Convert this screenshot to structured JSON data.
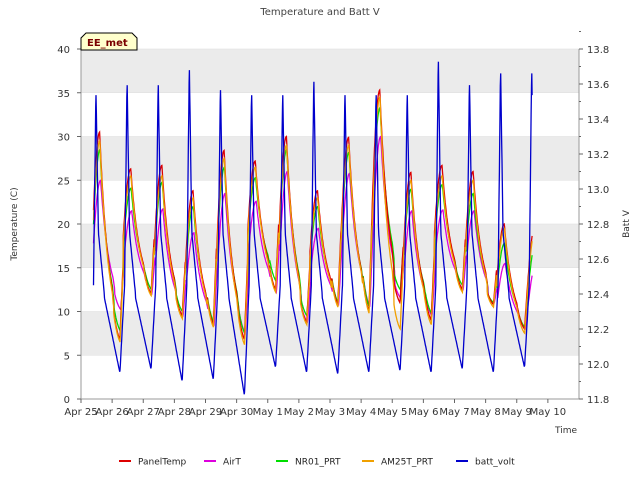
{
  "chart_data": {
    "type": "line",
    "title": "Temperature and Batt V",
    "xlabel": "Time",
    "ylabel": "Temperature (C)",
    "y2label": "Batt V",
    "ylim": [
      0,
      40
    ],
    "y2lim": [
      11.8,
      13.8
    ],
    "xlim": [
      0,
      16
    ],
    "x_ticks": [
      "Apr 25",
      "Apr 26",
      "Apr 27",
      "Apr 28",
      "Apr 29",
      "Apr 30",
      "May 1",
      "May 2",
      "May 3",
      "May 4",
      "May 5",
      "May 6",
      "May 7",
      "May 8",
      "May 9",
      "May 10"
    ],
    "y_ticks": [
      0,
      5,
      10,
      15,
      20,
      25,
      30,
      35,
      40
    ],
    "y2_ticks": [
      "11.8",
      "12.0",
      "12.2",
      "12.4",
      "12.6",
      "12.8",
      "13.0",
      "13.2",
      "13.4",
      "13.6",
      "13.8"
    ],
    "grid": true,
    "legend_position": "bottom",
    "station_label": "EE_met",
    "colors": {
      "band": "#ebebeb",
      "plot_bg": "#ffffff"
    },
    "daily": {
      "days": [
        0,
        1,
        2,
        3,
        4,
        5,
        6,
        7,
        8,
        9,
        10,
        11,
        12,
        13,
        14
      ],
      "PanelTemp_max": [
        30.5,
        26.3,
        26.7,
        23.8,
        28.4,
        27.2,
        30.0,
        23.8,
        29.9,
        35.3,
        25.9,
        26.7,
        26.0,
        20.0,
        20.0
      ],
      "PanelTemp_min": [
        6.8,
        12.0,
        9.5,
        8.5,
        6.8,
        12.5,
        8.7,
        10.8,
        10.0,
        11.0,
        9.0,
        12.5,
        10.8,
        8.0,
        7.8
      ],
      "AirT_max": [
        25.0,
        21.5,
        21.7,
        19.0,
        23.5,
        22.6,
        26.0,
        19.5,
        25.8,
        30.0,
        21.5,
        21.6,
        21.5,
        15.5,
        15.5
      ],
      "AirT_min": [
        10.2,
        12.0,
        9.5,
        8.5,
        7.5,
        12.2,
        8.8,
        10.8,
        10.5,
        11.5,
        9.5,
        12.5,
        11.0,
        8.0,
        7.8
      ],
      "NR01_PRT_max": [
        28.5,
        24.1,
        24.8,
        22.0,
        26.5,
        25.3,
        28.5,
        22.0,
        28.2,
        33.3,
        24.0,
        24.5,
        23.5,
        17.8,
        17.8
      ],
      "NR01_PRT_min": [
        7.8,
        12.5,
        10.0,
        8.8,
        7.5,
        13.5,
        9.5,
        11.0,
        10.5,
        12.5,
        9.8,
        13.0,
        11.0,
        8.2,
        7.5
      ],
      "AM25T_PRT_max": [
        29.5,
        25.5,
        25.5,
        23.0,
        27.5,
        26.5,
        29.0,
        23.0,
        29.0,
        34.5,
        25.0,
        25.5,
        25.0,
        19.5,
        19.5
      ],
      "AM25T_PRT_min": [
        6.5,
        11.8,
        9.2,
        8.2,
        6.2,
        12.2,
        8.5,
        10.5,
        9.8,
        8.0,
        8.5,
        12.2,
        10.5,
        7.5,
        7.5
      ],
      "batt_volt_peak": [
        13.57,
        13.63,
        13.63,
        13.72,
        13.6,
        13.57,
        13.57,
        13.65,
        13.57,
        13.57,
        13.57,
        13.77,
        13.63,
        13.7,
        13.7
      ],
      "batt_volt_min": [
        11.95,
        11.97,
        11.9,
        11.91,
        11.82,
        11.98,
        11.95,
        11.94,
        11.95,
        11.96,
        11.95,
        11.97,
        11.95,
        11.98,
        12.08
      ]
    },
    "series": [
      {
        "name": "PanelTemp",
        "color": "#dd0000"
      },
      {
        "name": "AirT",
        "color": "#dd00dd"
      },
      {
        "name": "NR01_PRT",
        "color": "#00dd00"
      },
      {
        "name": "AM25T_PRT",
        "color": "#f0a000"
      },
      {
        "name": "batt_volt",
        "color": "#0000cc"
      }
    ]
  }
}
